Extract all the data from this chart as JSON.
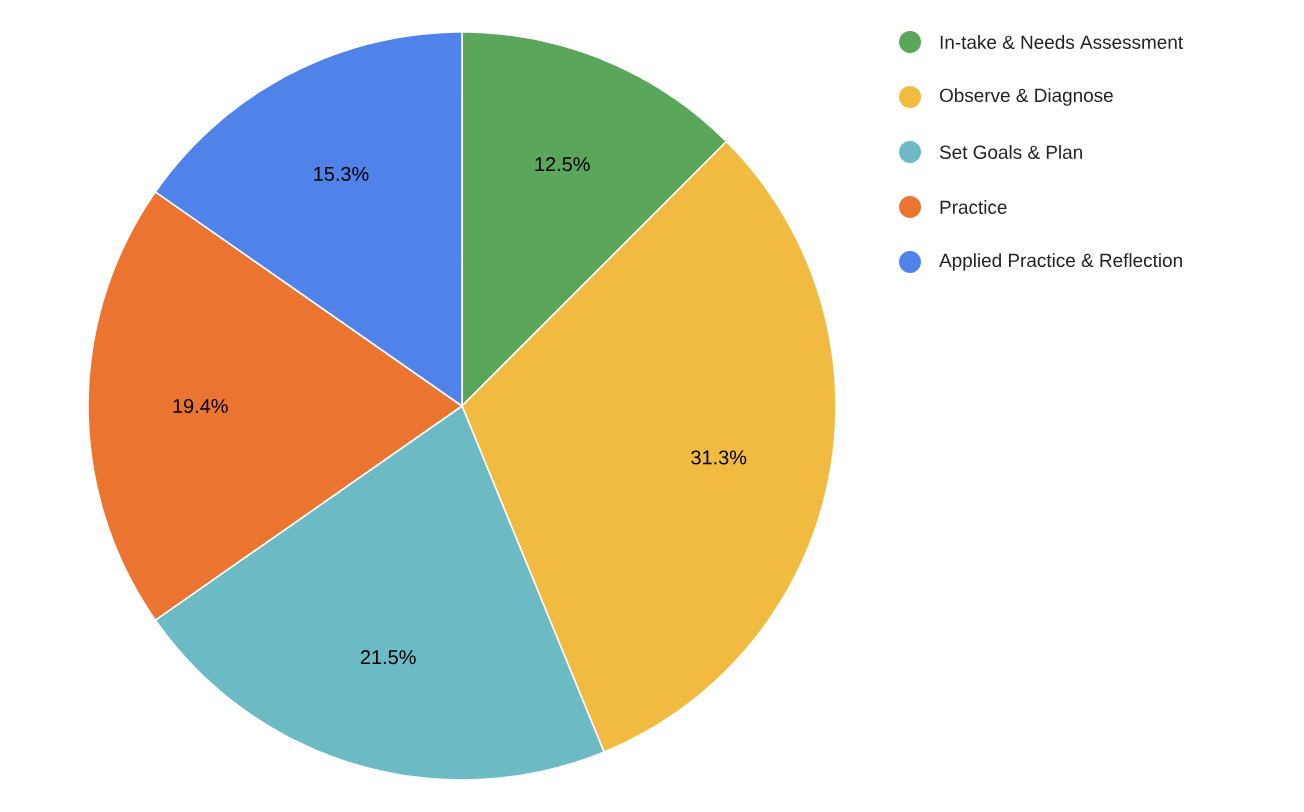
{
  "chart_data": {
    "type": "pie",
    "categories": [
      "In-take & Needs Assessment",
      "Observe & Diagnose",
      "Set Goals & Plan",
      "Practice",
      "Applied Practice & Reflection"
    ],
    "values": [
      12.5,
      31.3,
      21.5,
      19.4,
      15.3
    ],
    "value_labels": [
      "12.5%",
      "31.3%",
      "21.5%",
      "19.4%",
      "15.3%"
    ],
    "colors": [
      "#5aa65a",
      "#f0bb40",
      "#6bbac4",
      "#ec7431",
      "#4f83ea"
    ],
    "legend": "top right"
  }
}
